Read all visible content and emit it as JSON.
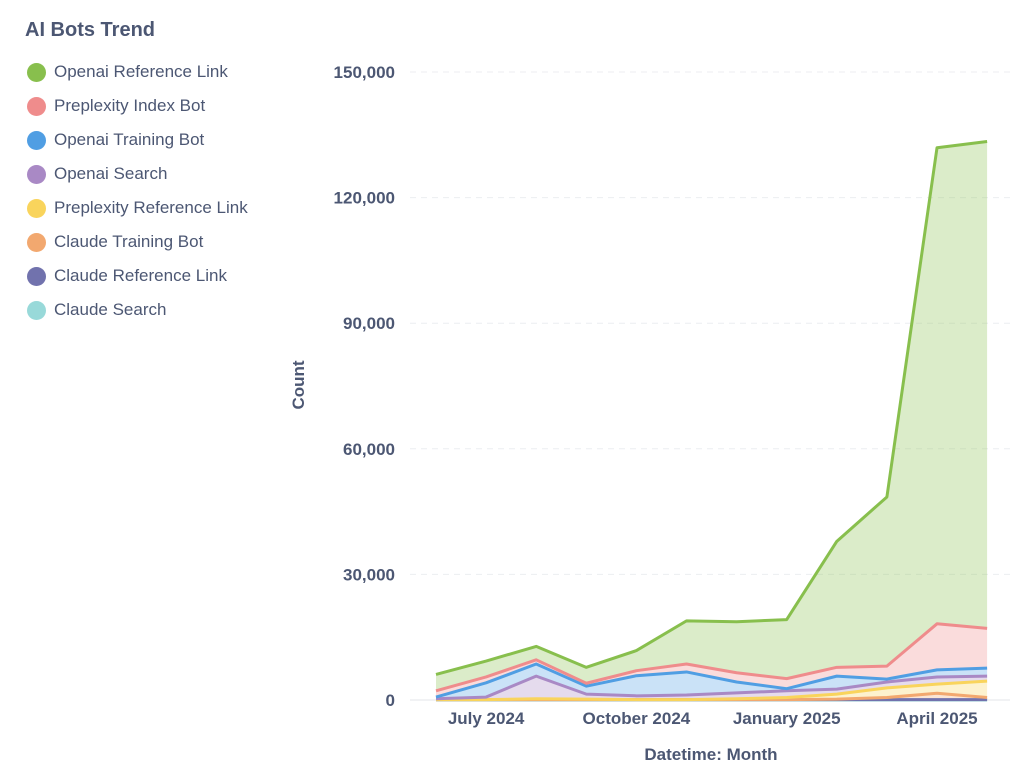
{
  "chart_data": {
    "type": "area",
    "stacked": true,
    "title": "AI Bots Trend",
    "xlabel": "Datetime: Month",
    "ylabel": "Count",
    "ylim": [
      0,
      150000
    ],
    "yticks": [
      0,
      30000,
      60000,
      90000,
      120000,
      150000
    ],
    "ytick_labels": [
      "0",
      "30,000",
      "60,000",
      "90,000",
      "120,000",
      "150,000"
    ],
    "grid": true,
    "legend_position": "left",
    "x": [
      "June 2024",
      "July 2024",
      "August 2024",
      "September 2024",
      "October 2024",
      "November 2024",
      "December 2024",
      "January 2025",
      "February 2025",
      "March 2025",
      "April 2025",
      "May 2025"
    ],
    "xtick_labels": [
      {
        "index": 1,
        "label": "July 2024"
      },
      {
        "index": 4,
        "label": "October 2024"
      },
      {
        "index": 7,
        "label": "January 2025"
      },
      {
        "index": 10,
        "label": "April 2025"
      }
    ],
    "series": [
      {
        "name": "Openai Reference Link",
        "color": "#88bf4d",
        "values": [
          3900,
          3800,
          3200,
          3800,
          4800,
          10300,
          12200,
          14100,
          30100,
          40400,
          113700,
          116300
        ]
      },
      {
        "name": "Preplexity Index Bot",
        "color": "#ef8c8c",
        "values": [
          1500,
          1400,
          1000,
          700,
          1200,
          1900,
          2200,
          2400,
          2100,
          3100,
          11000,
          9500
        ]
      },
      {
        "name": "Openai Training Bot",
        "color": "#509ee3",
        "values": [
          400,
          3400,
          2900,
          1900,
          4800,
          5500,
          2600,
          500,
          3100,
          700,
          1700,
          1900
        ]
      },
      {
        "name": "Openai Search",
        "color": "#a989c5",
        "values": [
          200,
          600,
          5400,
          1200,
          900,
          1100,
          1400,
          1600,
          1200,
          1400,
          1700,
          1200
        ]
      },
      {
        "name": "Preplexity Reference Link",
        "color": "#f9d45c",
        "values": [
          0,
          0,
          200,
          100,
          0,
          0,
          200,
          500,
          1200,
          2300,
          2200,
          3900
        ]
      },
      {
        "name": "Claude Training Bot",
        "color": "#f2a86f",
        "values": [
          0,
          0,
          0,
          0,
          0,
          0,
          0,
          0,
          100,
          500,
          1500,
          500
        ]
      },
      {
        "name": "Claude Reference Link",
        "color": "#7172ad",
        "values": [
          100,
          100,
          100,
          100,
          100,
          100,
          100,
          100,
          100,
          100,
          100,
          100
        ]
      },
      {
        "name": "Claude Search",
        "color": "#98d9d9",
        "values": [
          0,
          0,
          0,
          0,
          0,
          0,
          0,
          0,
          0,
          0,
          0,
          0
        ]
      }
    ]
  }
}
